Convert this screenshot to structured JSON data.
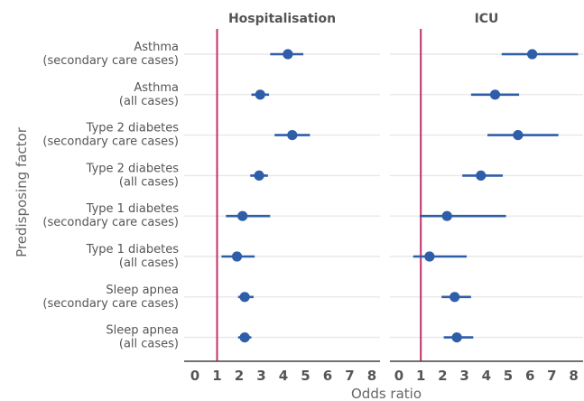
{
  "chart_data": {
    "type": "forest",
    "ylabel": "Predisposing factor",
    "xlabel": "Odds ratio",
    "xlim": [
      0,
      8.5
    ],
    "xticks": [
      0,
      1,
      2,
      3,
      4,
      5,
      6,
      7,
      8
    ],
    "reference_line": 1,
    "grid": "horizontal",
    "colors": {
      "point": "#2e5ea8",
      "reference": "#c2306b",
      "grid": "#e8e8e8",
      "axis": "#444444"
    },
    "factors": [
      [
        "Asthma",
        "(secondary care cases)"
      ],
      [
        "Asthma",
        "(all cases)"
      ],
      [
        "Type 2 diabetes",
        "(secondary care cases)"
      ],
      [
        "Type 2 diabetes",
        "(all cases)"
      ],
      [
        "Type 1 diabetes",
        "(secondary care cases)"
      ],
      [
        "Type 1 diabetes",
        "(all cases)"
      ],
      [
        "Sleep apnea",
        "(secondary care cases)"
      ],
      [
        "Sleep apnea",
        "(all cases)"
      ]
    ],
    "panels": [
      {
        "title": "Hospitalisation",
        "estimates": [
          {
            "or": 4.2,
            "lo": 3.4,
            "hi": 4.9
          },
          {
            "or": 2.95,
            "lo": 2.55,
            "hi": 3.35
          },
          {
            "or": 4.4,
            "lo": 3.6,
            "hi": 5.2
          },
          {
            "or": 2.9,
            "lo": 2.5,
            "hi": 3.3
          },
          {
            "or": 2.15,
            "lo": 1.4,
            "hi": 3.4
          },
          {
            "or": 1.9,
            "lo": 1.2,
            "hi": 2.7
          },
          {
            "or": 2.25,
            "lo": 1.95,
            "hi": 2.65
          },
          {
            "or": 2.25,
            "lo": 1.95,
            "hi": 2.55
          }
        ]
      },
      {
        "title": "ICU",
        "estimates": [
          {
            "or": 6.1,
            "lo": 4.7,
            "hi": 8.2
          },
          {
            "or": 4.4,
            "lo": 3.3,
            "hi": 5.5
          },
          {
            "or": 5.45,
            "lo": 4.05,
            "hi": 7.3
          },
          {
            "or": 3.75,
            "lo": 2.9,
            "hi": 4.75
          },
          {
            "or": 2.2,
            "lo": 0.95,
            "hi": 4.9
          },
          {
            "or": 1.4,
            "lo": 0.65,
            "hi": 3.1
          },
          {
            "or": 2.55,
            "lo": 1.95,
            "hi": 3.3
          },
          {
            "or": 2.65,
            "lo": 2.05,
            "hi": 3.4
          }
        ]
      }
    ]
  }
}
